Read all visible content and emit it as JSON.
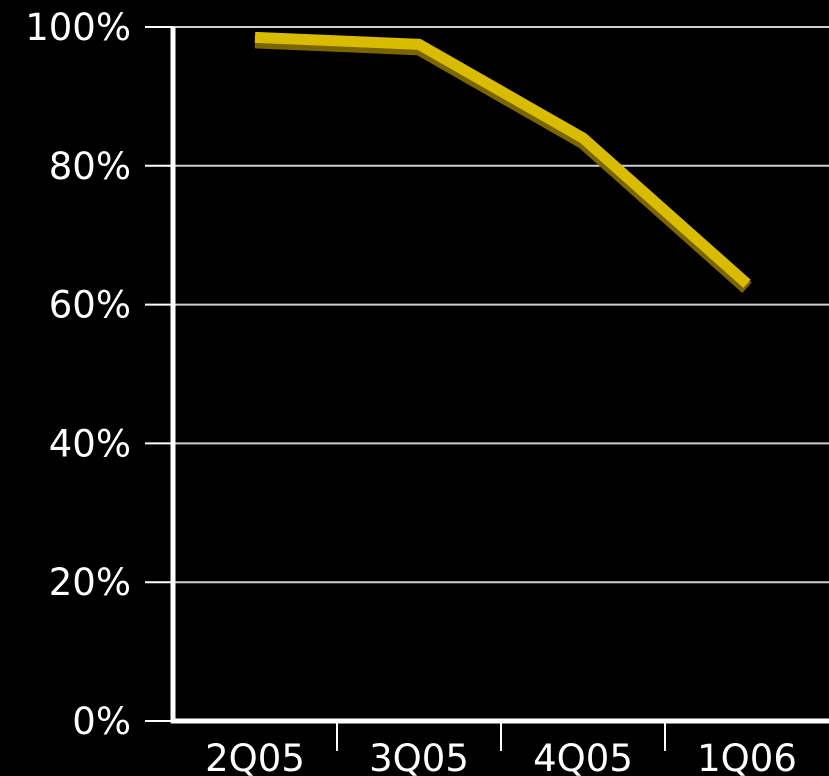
{
  "chart_data": {
    "type": "line",
    "categories": [
      "2Q05",
      "3Q05",
      "4Q05",
      "1Q06"
    ],
    "series": [
      {
        "values": [
          98.5,
          97.5,
          84,
          63
        ]
      }
    ],
    "yticks": [
      "0%",
      "20%",
      "40%",
      "60%",
      "80%",
      "100%"
    ],
    "ytick_values": [
      0,
      20,
      40,
      60,
      80,
      100
    ],
    "ylim": [
      0,
      100
    ],
    "grid": true,
    "colors": {
      "background": "#000000",
      "axis": "#ffffff",
      "grid": "#cfcfcf",
      "line": "#d9bc00",
      "line_shadow": "#7a6500"
    }
  }
}
